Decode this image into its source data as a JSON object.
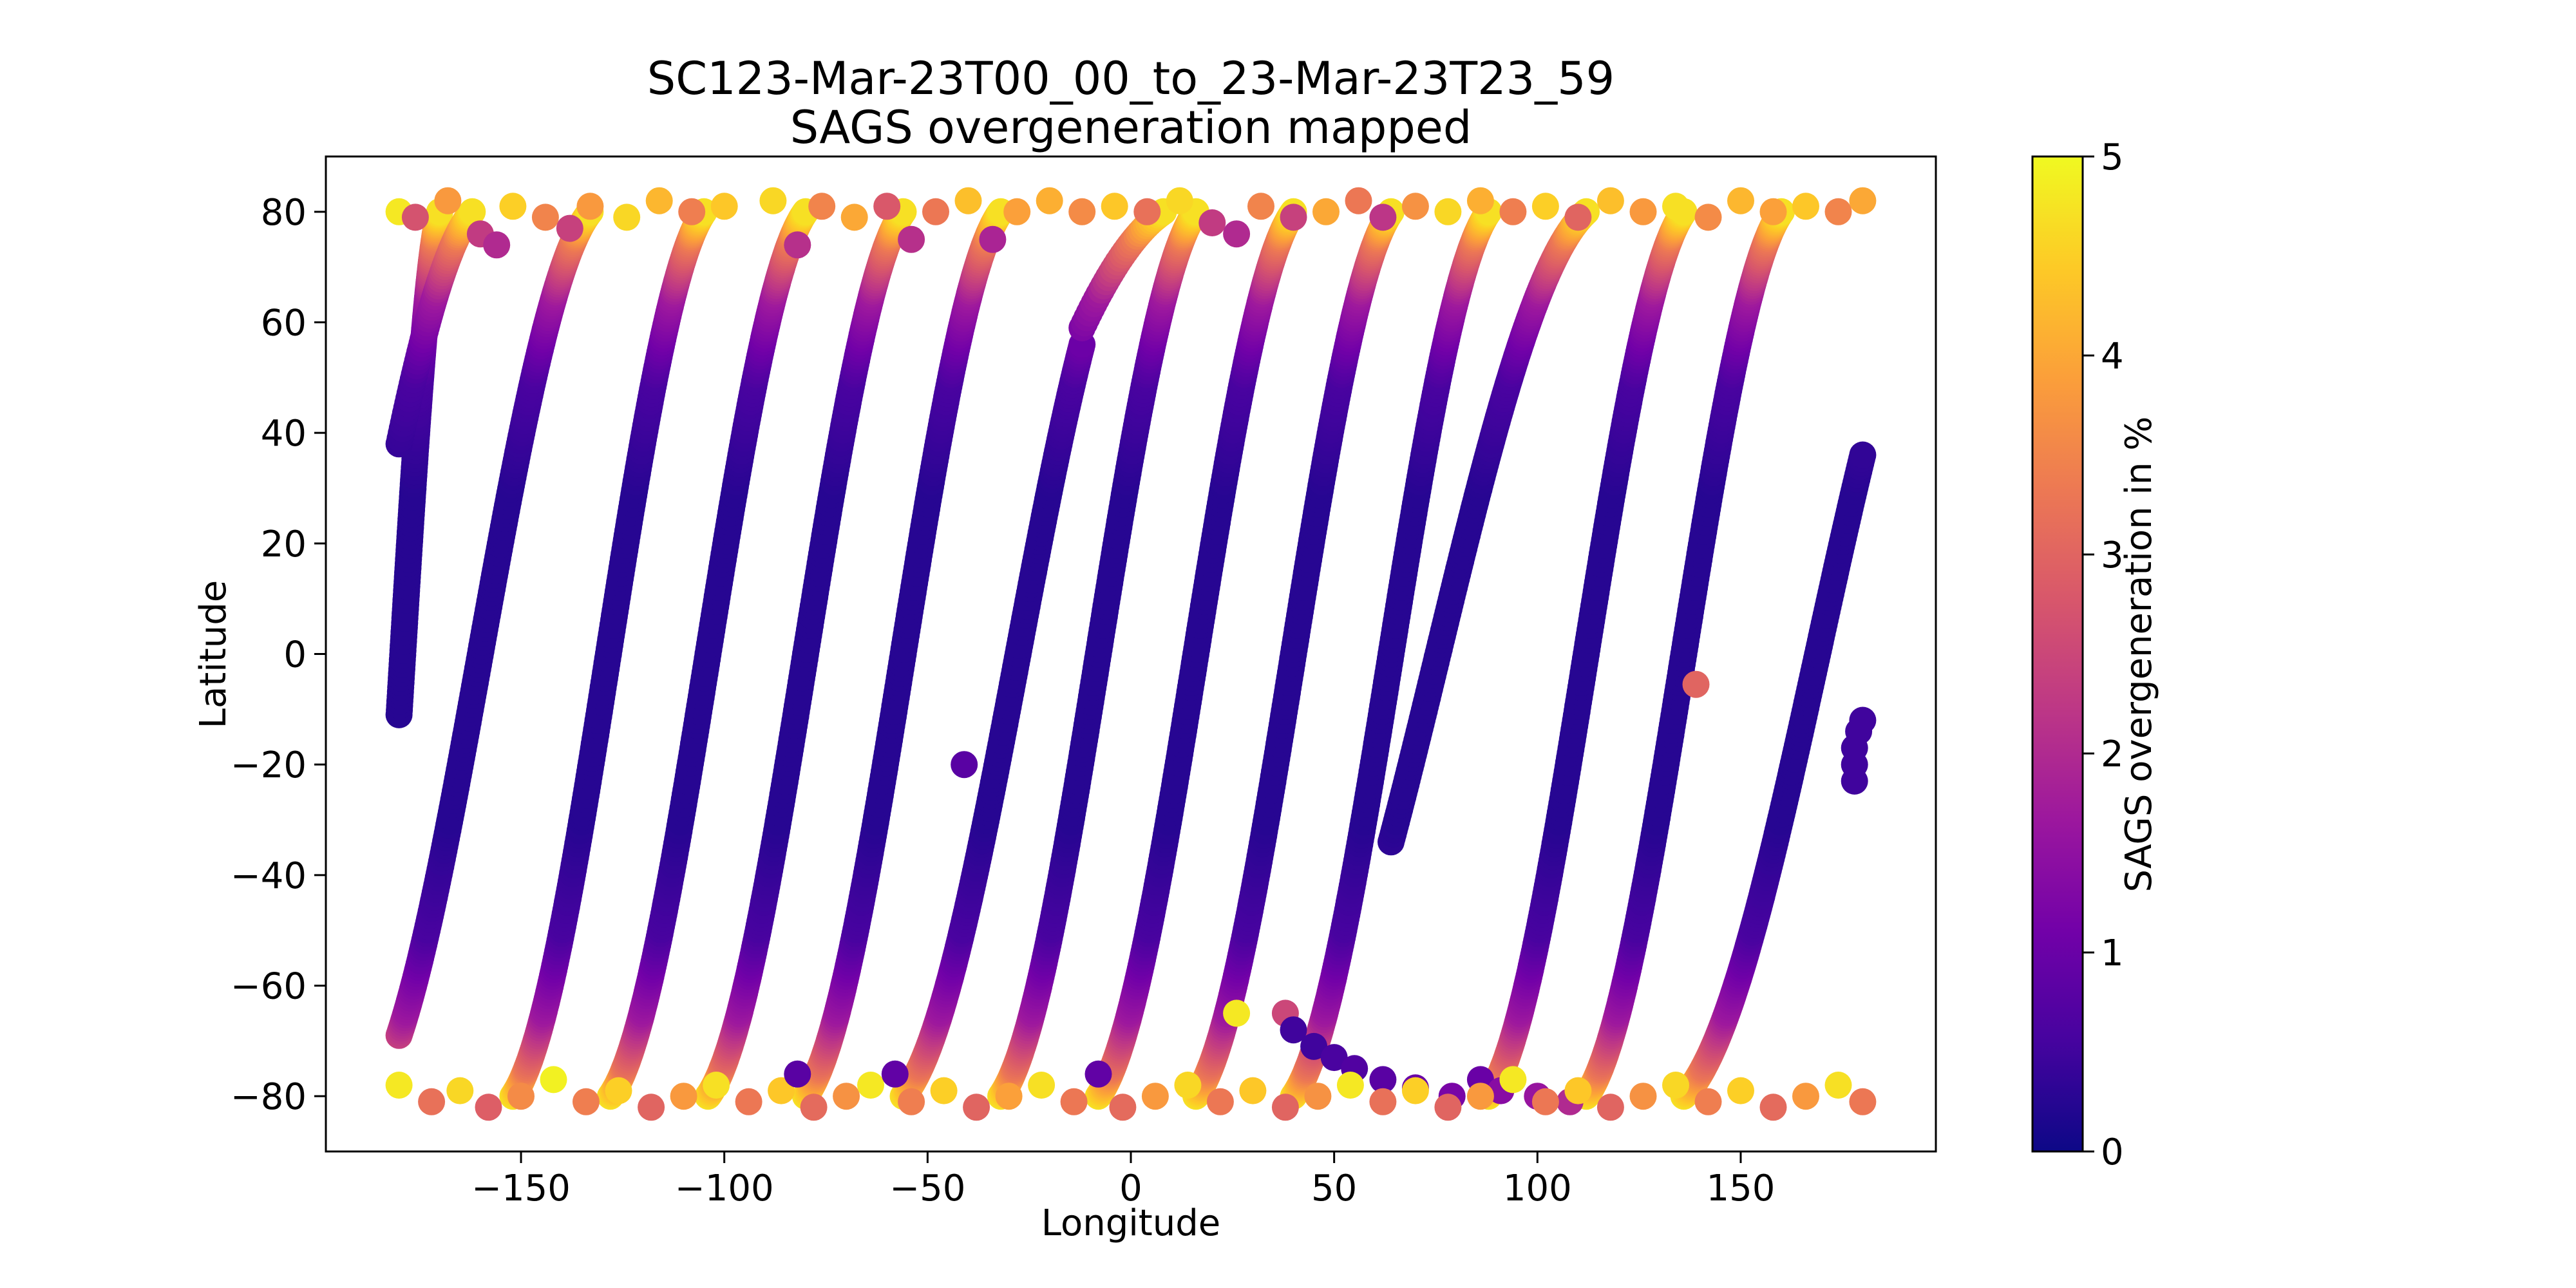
{
  "chart_data": {
    "type": "scatter",
    "title": "SC123-Mar-23T00_00_to_23-Mar-23T23_59",
    "subtitle": "SAGS overgeneration mapped",
    "xlabel": "Longitude",
    "ylabel": "Latitude",
    "xlim": [
      -198,
      198
    ],
    "ylim": [
      -90,
      90
    ],
    "xticks": [
      -150,
      -100,
      -50,
      0,
      50,
      100,
      150
    ],
    "yticks": [
      -80,
      -60,
      -40,
      -20,
      0,
      20,
      40,
      60,
      80
    ],
    "xtick_labels": [
      "−150",
      "−100",
      "−50",
      "0",
      "50",
      "100",
      "150"
    ],
    "ytick_labels": [
      "−80",
      "−60",
      "−40",
      "−20",
      "0",
      "20",
      "40",
      "60",
      "80"
    ],
    "grid": false,
    "legend": "none",
    "colorbar": {
      "label": "SAGS overgeneration in %",
      "range": [
        0,
        5
      ],
      "ticks": [
        "0",
        "1",
        "2",
        "3",
        "4",
        "5"
      ],
      "colormap": "plasma",
      "stops": [
        "#0d0887",
        "#46039f",
        "#7201a8",
        "#9c179e",
        "#bd3786",
        "#d8576b",
        "#ed7953",
        "#fb9f3a",
        "#fdca26",
        "#f0f921"
      ]
    },
    "orbit_tracks": [
      {
        "start_lon": -180,
        "lat_start": -11,
        "lon_end": -170,
        "lat_end": 80
      },
      {
        "start_lon": -180,
        "lat_start": 38,
        "lon_end": -162,
        "lat_end": 80
      },
      {
        "start_lon": -180,
        "lat_start": -69,
        "lon_end": -133,
        "lat_end": 80
      },
      {
        "start_lon": -152,
        "lat_start": -80,
        "lon_end": -105,
        "lat_end": 80
      },
      {
        "start_lon": -128,
        "lat_start": -80,
        "lon_end": -80,
        "lat_end": 80
      },
      {
        "start_lon": -104,
        "lat_start": -80,
        "lon_end": -56,
        "lat_end": 80
      },
      {
        "start_lon": -80,
        "lat_start": -80,
        "lon_end": -32,
        "lat_end": 80
      },
      {
        "start_lon": -56,
        "lat_start": -80,
        "lon_end": -12,
        "lat_end": 56
      },
      {
        "start_lon": -12,
        "lat_start": 59,
        "lon_end": 8,
        "lat_end": 80
      },
      {
        "start_lon": -32,
        "lat_start": -80,
        "lon_end": 16,
        "lat_end": 80
      },
      {
        "start_lon": -8,
        "lat_start": -80,
        "lon_end": 40,
        "lat_end": 80
      },
      {
        "start_lon": 16,
        "lat_start": -80,
        "lon_end": 64,
        "lat_end": 80
      },
      {
        "start_lon": 40,
        "lat_start": -80,
        "lon_end": 88,
        "lat_end": 80
      },
      {
        "start_lon": 64,
        "lat_start": -34,
        "lon_end": 112,
        "lat_end": 80
      },
      {
        "start_lon": 88,
        "lat_start": -80,
        "lon_end": 136,
        "lat_end": 80
      },
      {
        "start_lon": 112,
        "lat_start": -80,
        "lon_end": 160,
        "lat_end": 80
      },
      {
        "start_lon": 136,
        "lat_start": -80,
        "lon_end": 180,
        "lat_end": 36
      }
    ],
    "points": [
      {
        "lon": -41,
        "lat": -20,
        "value": 0.8
      },
      {
        "lon": 139,
        "lat": -5.5,
        "value": 3.0
      },
      {
        "lon": 178,
        "lat": -23,
        "value": 0.5
      },
      {
        "lon": 178,
        "lat": -20,
        "value": 0.5
      },
      {
        "lon": 178,
        "lat": -17,
        "value": 0.5
      },
      {
        "lon": 179,
        "lat": -14,
        "value": 0.5
      },
      {
        "lon": 180,
        "lat": -12,
        "value": 0.5
      },
      {
        "lon": 38,
        "lat": -65,
        "value": 2.5
      },
      {
        "lon": 40,
        "lat": -68,
        "value": 0.5
      },
      {
        "lon": 45,
        "lat": -71,
        "value": 0.5
      },
      {
        "lon": 50,
        "lat": -73,
        "value": 0.6
      },
      {
        "lon": 55,
        "lat": -75,
        "value": 0.7
      },
      {
        "lon": 62,
        "lat": -77,
        "value": 0.8
      },
      {
        "lon": 70,
        "lat": -78.5,
        "value": 1.0
      },
      {
        "lon": 79,
        "lat": -80,
        "value": 1.2
      },
      {
        "lon": 86,
        "lat": -77,
        "value": 1.0
      },
      {
        "lon": 91,
        "lat": -79,
        "value": 1.4
      },
      {
        "lon": 100,
        "lat": -80,
        "value": 1.6
      },
      {
        "lon": 108,
        "lat": -81,
        "value": 2.0
      },
      {
        "lon": 26,
        "lat": -65,
        "value": 4.8
      },
      {
        "lon": -180,
        "lat": 80,
        "value": 4.8
      },
      {
        "lon": -176,
        "lat": 79,
        "value": 2.7
      },
      {
        "lon": -168,
        "lat": 82,
        "value": 3.8
      },
      {
        "lon": -160,
        "lat": 76,
        "value": 2.3
      },
      {
        "lon": -156,
        "lat": 74,
        "value": 2.0
      },
      {
        "lon": -152,
        "lat": 81,
        "value": 4.5
      },
      {
        "lon": -144,
        "lat": 79,
        "value": 3.5
      },
      {
        "lon": -138,
        "lat": 77,
        "value": 2.4
      },
      {
        "lon": -133,
        "lat": 81,
        "value": 3.8
      },
      {
        "lon": -124,
        "lat": 79,
        "value": 4.6
      },
      {
        "lon": -116,
        "lat": 82,
        "value": 4.2
      },
      {
        "lon": -108,
        "lat": 80,
        "value": 3.4
      },
      {
        "lon": -100,
        "lat": 81,
        "value": 4.4
      },
      {
        "lon": -88,
        "lat": 82,
        "value": 4.6
      },
      {
        "lon": -82,
        "lat": 74,
        "value": 2.1
      },
      {
        "lon": -76,
        "lat": 81,
        "value": 3.5
      },
      {
        "lon": -68,
        "lat": 79,
        "value": 4.0
      },
      {
        "lon": -60,
        "lat": 81,
        "value": 2.8
      },
      {
        "lon": -54,
        "lat": 75,
        "value": 2.1
      },
      {
        "lon": -48,
        "lat": 80,
        "value": 3.3
      },
      {
        "lon": -40,
        "lat": 82,
        "value": 4.3
      },
      {
        "lon": -34,
        "lat": 75,
        "value": 1.9
      },
      {
        "lon": -28,
        "lat": 80,
        "value": 3.9
      },
      {
        "lon": -20,
        "lat": 82,
        "value": 4.1
      },
      {
        "lon": -12,
        "lat": 80,
        "value": 3.6
      },
      {
        "lon": -4,
        "lat": 81,
        "value": 4.4
      },
      {
        "lon": 4,
        "lat": 80,
        "value": 3.2
      },
      {
        "lon": 12,
        "lat": 82,
        "value": 4.6
      },
      {
        "lon": 20,
        "lat": 78,
        "value": 2.3
      },
      {
        "lon": 26,
        "lat": 76,
        "value": 2.0
      },
      {
        "lon": 32,
        "lat": 81,
        "value": 3.5
      },
      {
        "lon": 40,
        "lat": 79,
        "value": 2.4
      },
      {
        "lon": 48,
        "lat": 80,
        "value": 4.0
      },
      {
        "lon": 56,
        "lat": 82,
        "value": 3.3
      },
      {
        "lon": 62,
        "lat": 79,
        "value": 2.2
      },
      {
        "lon": 70,
        "lat": 81,
        "value": 3.7
      },
      {
        "lon": 78,
        "lat": 80,
        "value": 4.6
      },
      {
        "lon": 86,
        "lat": 82,
        "value": 4.1
      },
      {
        "lon": 94,
        "lat": 80,
        "value": 3.4
      },
      {
        "lon": 102,
        "lat": 81,
        "value": 4.5
      },
      {
        "lon": 110,
        "lat": 79,
        "value": 3.0
      },
      {
        "lon": 118,
        "lat": 82,
        "value": 4.3
      },
      {
        "lon": 126,
        "lat": 80,
        "value": 3.8
      },
      {
        "lon": 134,
        "lat": 81,
        "value": 4.7
      },
      {
        "lon": 142,
        "lat": 79,
        "value": 3.6
      },
      {
        "lon": 150,
        "lat": 82,
        "value": 4.2
      },
      {
        "lon": 158,
        "lat": 80,
        "value": 3.9
      },
      {
        "lon": 166,
        "lat": 81,
        "value": 4.4
      },
      {
        "lon": 174,
        "lat": 80,
        "value": 3.5
      },
      {
        "lon": 180,
        "lat": 82,
        "value": 4.0
      },
      {
        "lon": -180,
        "lat": -78,
        "value": 4.8
      },
      {
        "lon": -172,
        "lat": -81,
        "value": 3.2
      },
      {
        "lon": -165,
        "lat": -79,
        "value": 4.6
      },
      {
        "lon": -158,
        "lat": -82,
        "value": 2.9
      },
      {
        "lon": -150,
        "lat": -80,
        "value": 3.6
      },
      {
        "lon": -142,
        "lat": -77,
        "value": 4.9
      },
      {
        "lon": -134,
        "lat": -81,
        "value": 3.4
      },
      {
        "lon": -126,
        "lat": -79,
        "value": 4.5
      },
      {
        "lon": -118,
        "lat": -82,
        "value": 3.0
      },
      {
        "lon": -110,
        "lat": -80,
        "value": 3.8
      },
      {
        "lon": -102,
        "lat": -78,
        "value": 4.7
      },
      {
        "lon": -94,
        "lat": -81,
        "value": 3.3
      },
      {
        "lon": -86,
        "lat": -79,
        "value": 4.4
      },
      {
        "lon": -82,
        "lat": -76,
        "value": 0.8
      },
      {
        "lon": -78,
        "lat": -82,
        "value": 3.1
      },
      {
        "lon": -70,
        "lat": -80,
        "value": 3.7
      },
      {
        "lon": -64,
        "lat": -78,
        "value": 4.8
      },
      {
        "lon": -58,
        "lat": -76,
        "value": 0.9
      },
      {
        "lon": -54,
        "lat": -81,
        "value": 3.4
      },
      {
        "lon": -46,
        "lat": -79,
        "value": 4.5
      },
      {
        "lon": -38,
        "lat": -82,
        "value": 3.0
      },
      {
        "lon": -30,
        "lat": -80,
        "value": 3.9
      },
      {
        "lon": -22,
        "lat": -78,
        "value": 4.7
      },
      {
        "lon": -14,
        "lat": -81,
        "value": 3.3
      },
      {
        "lon": -8,
        "lat": -76,
        "value": 0.9
      },
      {
        "lon": -2,
        "lat": -82,
        "value": 3.1
      },
      {
        "lon": 6,
        "lat": -80,
        "value": 3.8
      },
      {
        "lon": 14,
        "lat": -78,
        "value": 4.6
      },
      {
        "lon": 22,
        "lat": -81,
        "value": 3.3
      },
      {
        "lon": 30,
        "lat": -79,
        "value": 4.4
      },
      {
        "lon": 38,
        "lat": -82,
        "value": 3.0
      },
      {
        "lon": 46,
        "lat": -80,
        "value": 3.7
      },
      {
        "lon": 54,
        "lat": -78,
        "value": 4.8
      },
      {
        "lon": 62,
        "lat": -81,
        "value": 3.2
      },
      {
        "lon": 70,
        "lat": -79,
        "value": 4.5
      },
      {
        "lon": 78,
        "lat": -82,
        "value": 3.0
      },
      {
        "lon": 86,
        "lat": -80,
        "value": 3.8
      },
      {
        "lon": 94,
        "lat": -77,
        "value": 4.8
      },
      {
        "lon": 102,
        "lat": -81,
        "value": 3.3
      },
      {
        "lon": 110,
        "lat": -79,
        "value": 4.4
      },
      {
        "lon": 118,
        "lat": -82,
        "value": 3.0
      },
      {
        "lon": 126,
        "lat": -80,
        "value": 3.7
      },
      {
        "lon": 134,
        "lat": -78,
        "value": 4.6
      },
      {
        "lon": 142,
        "lat": -81,
        "value": 3.4
      },
      {
        "lon": 150,
        "lat": -79,
        "value": 4.5
      },
      {
        "lon": 158,
        "lat": -82,
        "value": 3.1
      },
      {
        "lon": 166,
        "lat": -80,
        "value": 3.8
      },
      {
        "lon": 174,
        "lat": -78,
        "value": 4.7
      },
      {
        "lon": 180,
        "lat": -81,
        "value": 3.3
      }
    ]
  }
}
